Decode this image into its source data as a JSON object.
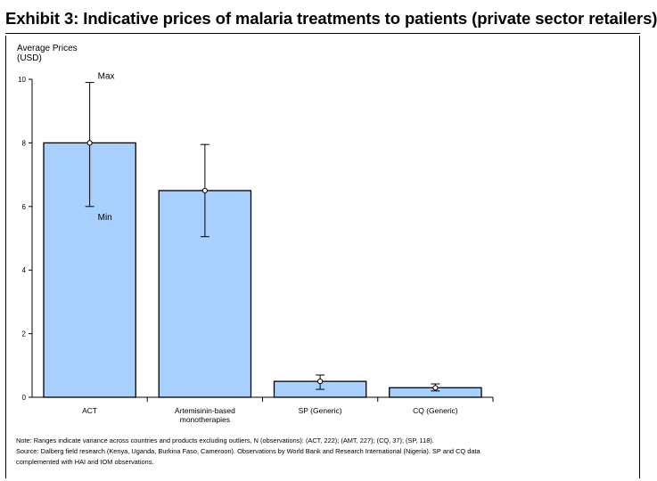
{
  "page": {
    "title": "Exhibit 3: Indicative prices of malaria treatments to patients (private sector retailers)"
  },
  "chart_data": {
    "type": "bar",
    "title": "Exhibit 3: Indicative prices of malaria treatments to patients (private sector retailers)",
    "ylabel_lines": [
      "Average Prices",
      "(USD)"
    ],
    "xlabel": "",
    "ylim": [
      0,
      10
    ],
    "yticks": [
      0,
      2,
      4,
      6,
      8,
      10
    ],
    "grid": false,
    "categories": [
      [
        "ACT"
      ],
      [
        "Artemisinin-based",
        "monotherapies"
      ],
      [
        "SP (Generic)"
      ],
      [
        "CQ (Generic)"
      ]
    ],
    "values": [
      8.0,
      6.5,
      0.5,
      0.3
    ],
    "ranges": [
      {
        "min": 6.0,
        "max": 9.9
      },
      {
        "min": 5.05,
        "max": 7.95
      },
      {
        "min": 0.25,
        "max": 0.7
      },
      {
        "min": 0.2,
        "max": 0.42
      }
    ],
    "annotations": {
      "max_label": "Max",
      "min_label": "Min"
    },
    "bar_color": "#a8d0ff"
  },
  "notes": {
    "line1": "Note: Ranges indicate variance across countries and products excluding outliers, N (observations): (ACT, 222); (AMT, 227); (CQ, 37); (SP, 118).",
    "line2": "Source: Dalberg field research (Kenya, Uganda, Burkina Faso, Cameroon).  Observations by World Bank and Research International (Nigeria). SP and CQ data",
    "line3": "complemented with HAI and IOM observations."
  }
}
